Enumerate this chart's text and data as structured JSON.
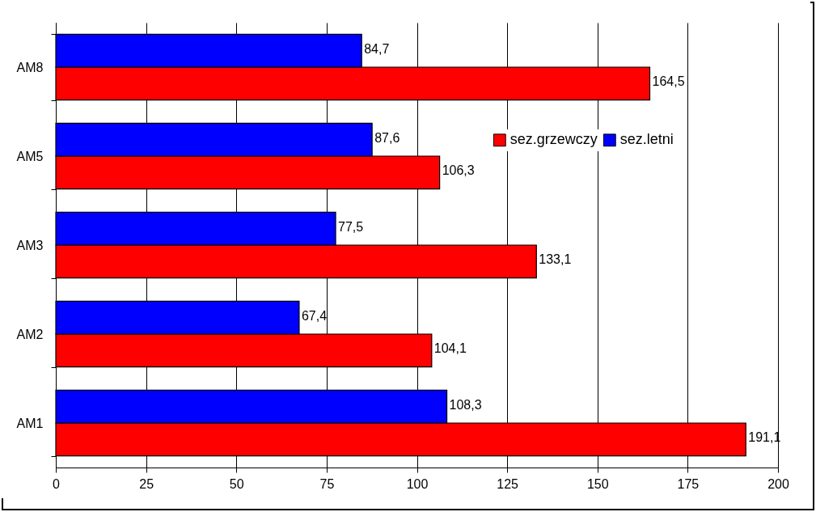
{
  "chart_data": {
    "type": "bar",
    "orientation": "horizontal",
    "categories": [
      "AM8",
      "AM5",
      "AM3",
      "AM2",
      "AM1"
    ],
    "series": [
      {
        "name": "sez.grzewczy",
        "color": "#ff0000",
        "values": [
          164.5,
          106.3,
          133.1,
          104.1,
          191.1
        ],
        "value_labels": [
          "164,5",
          "106,3",
          "133,1",
          "104,1",
          "191,1"
        ]
      },
      {
        "name": "sez.letni",
        "color": "#0000ff",
        "values": [
          84.7,
          87.6,
          77.5,
          67.4,
          108.3
        ],
        "value_labels": [
          "84,7",
          "87,6",
          "77,5",
          "67,4",
          "108,3"
        ]
      }
    ],
    "xlim": [
      0,
      200
    ],
    "xticks": [
      0,
      25,
      50,
      75,
      100,
      125,
      150,
      175,
      200
    ],
    "grid": "x",
    "legend": "right"
  }
}
